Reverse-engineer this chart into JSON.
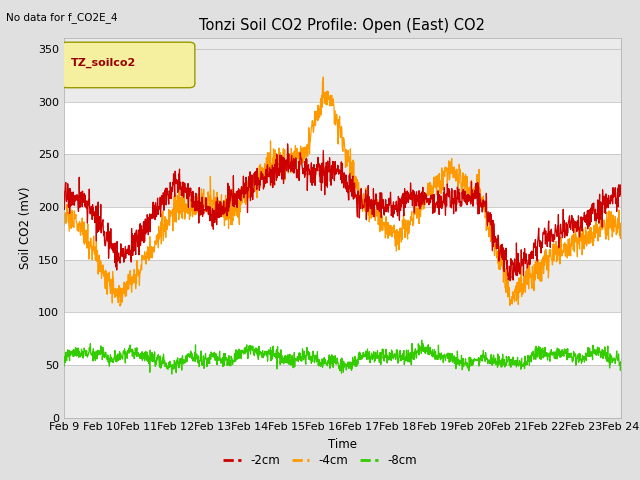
{
  "title": "Tonzi Soil CO2 Profile: Open (East) CO2",
  "subtitle": "No data for f_CO2E_4",
  "ylabel": "Soil CO2 (mV)",
  "xlabel": "Time",
  "legend_label": "TZ_soilco2",
  "series_labels": [
    "-2cm",
    "-4cm",
    "-8cm"
  ],
  "series_colors": [
    "#cc0000",
    "#ff9900",
    "#33cc00"
  ],
  "ylim": [
    0,
    360
  ],
  "yticks": [
    0,
    50,
    100,
    150,
    200,
    250,
    300,
    350
  ],
  "date_labels": [
    "Feb 9",
    "Feb 10",
    "Feb 11",
    "Feb 12",
    "Feb 13",
    "Feb 14",
    "Feb 15",
    "Feb 16",
    "Feb 17",
    "Feb 18",
    "Feb 19",
    "Feb 20",
    "Feb 21",
    "Feb 22",
    "Feb 23",
    "Feb 24"
  ],
  "bg_color": "#e0e0e0",
  "plot_bg": "#ebebeb",
  "band_colors": [
    "#e8e8e8",
    "#ffffff"
  ]
}
